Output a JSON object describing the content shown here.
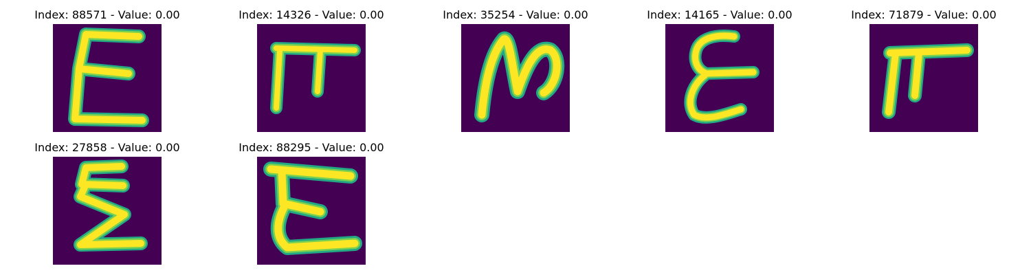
{
  "panels": [
    {
      "title": "Index: 88571 - Value: 0.00",
      "glyph": "sigma-tall"
    },
    {
      "title": "Index: 14326 - Value: 0.00",
      "glyph": "pi"
    },
    {
      "title": "Index: 35254 - Value: 0.00",
      "glyph": "n-script"
    },
    {
      "title": "Index: 14165 - Value: 0.00",
      "glyph": "epsilon"
    },
    {
      "title": "Index: 71879 - Value: 0.00",
      "glyph": "pi-small"
    },
    {
      "title": "Index: 27858 - Value: 0.00",
      "glyph": "sigma"
    },
    {
      "title": "Index: 88295 - Value: 0.00",
      "glyph": "epsilon-bar"
    }
  ],
  "colors": {
    "background": "#440154",
    "stroke_core": "#fde725",
    "stroke_mid": "#7ad151",
    "stroke_edge": "#22a884"
  }
}
